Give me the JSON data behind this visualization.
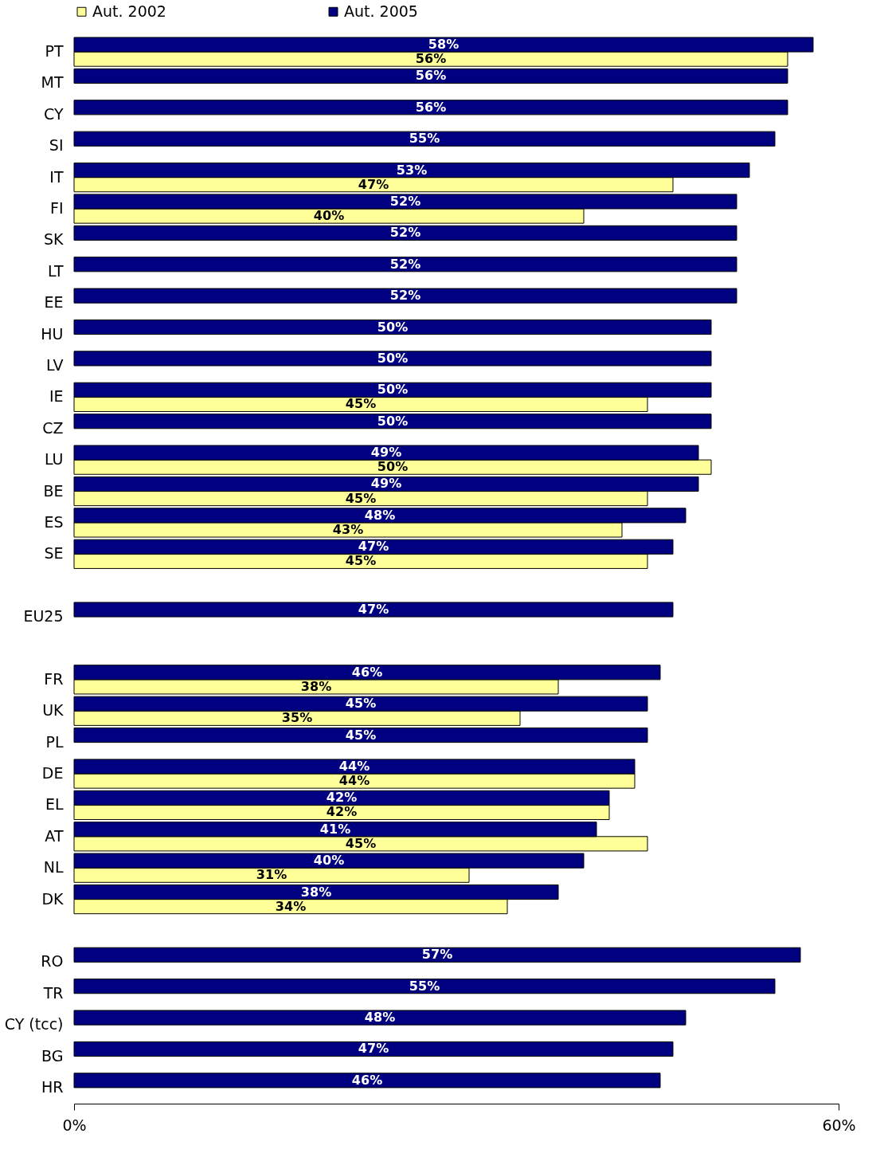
{
  "chart_data": {
    "type": "bar",
    "orientation": "horizontal",
    "categories": [
      "PT",
      "MT",
      "CY",
      "SI",
      "IT",
      "FI",
      "SK",
      "LT",
      "EE",
      "HU",
      "LV",
      "IE",
      "CZ",
      "LU",
      "BE",
      "ES",
      "SE",
      null,
      "EU25",
      null,
      "FR",
      "UK",
      "PL",
      "DE",
      "EL",
      "AT",
      "NL",
      "DK",
      null,
      "RO",
      "TR",
      "CY (tcc)",
      "BG",
      "HR"
    ],
    "series": [
      {
        "name": "Aut. 2002",
        "color": "#ffff99",
        "values": [
          56,
          null,
          null,
          null,
          47,
          40,
          null,
          null,
          null,
          null,
          null,
          45,
          null,
          50,
          45,
          43,
          45,
          null,
          null,
          null,
          38,
          35,
          null,
          44,
          42,
          45,
          31,
          34,
          null,
          null,
          null,
          null,
          null,
          null
        ],
        "value_labels": [
          "56%",
          null,
          null,
          null,
          "47%",
          "40%",
          null,
          null,
          null,
          null,
          null,
          "45%",
          null,
          "50%",
          "45%",
          "43%",
          "45%",
          null,
          null,
          null,
          "38%",
          "35%",
          null,
          "44%",
          "42%",
          "45%",
          "31%",
          "34%",
          null,
          null,
          null,
          null,
          null,
          null
        ]
      },
      {
        "name": "Aut. 2005",
        "color": "#000080",
        "values": [
          58,
          56,
          56,
          55,
          53,
          52,
          52,
          52,
          52,
          50,
          50,
          50,
          50,
          49,
          49,
          48,
          47,
          null,
          47,
          null,
          46,
          45,
          45,
          44,
          42,
          41,
          40,
          38,
          null,
          57,
          55,
          48,
          47,
          46
        ],
        "value_labels": [
          "58%",
          "56%",
          "56%",
          "55%",
          "53%",
          "52%",
          "52%",
          "52%",
          "52%",
          "50%",
          "50%",
          "50%",
          "50%",
          "49%",
          "49%",
          "48%",
          "47%",
          null,
          "47%",
          null,
          "46%",
          "45%",
          "45%",
          "44%",
          "42%",
          "41%",
          "40%",
          "38%",
          null,
          "57%",
          "55%",
          "48%",
          "47%",
          "46%"
        ]
      }
    ],
    "xlim": [
      0,
      60
    ],
    "xticks": [
      {
        "value": 0,
        "label": "0%"
      },
      {
        "value": 60,
        "label": "60%"
      }
    ],
    "legend": "top",
    "grid": false
  }
}
